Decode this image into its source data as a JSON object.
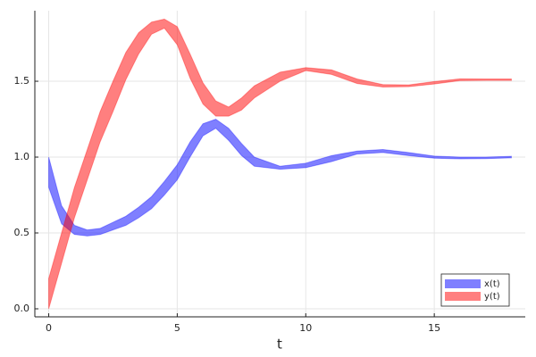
{
  "chart_data": {
    "type": "ribbon",
    "xlabel": "t",
    "x": [
      0,
      0.5,
      1,
      1.5,
      2,
      2.5,
      3,
      3.5,
      4,
      4.5,
      5,
      5.5,
      6,
      6.5,
      7,
      7.5,
      8,
      9,
      10,
      11,
      12,
      13,
      14,
      15,
      16,
      17,
      18
    ],
    "series": [
      {
        "name": "x(t)",
        "color": "#0000ff",
        "lower": [
          0.8,
          0.56,
          0.49,
          0.48,
          0.49,
          0.52,
          0.55,
          0.6,
          0.66,
          0.75,
          0.85,
          1.0,
          1.14,
          1.19,
          1.11,
          1.01,
          0.94,
          0.92,
          0.93,
          0.97,
          1.02,
          1.03,
          1.01,
          0.993,
          0.988,
          0.99,
          0.995
        ],
        "upper": [
          1.0,
          0.68,
          0.55,
          0.52,
          0.53,
          0.57,
          0.61,
          0.67,
          0.74,
          0.84,
          0.95,
          1.1,
          1.22,
          1.25,
          1.19,
          1.09,
          1.0,
          0.94,
          0.96,
          1.01,
          1.04,
          1.05,
          1.03,
          1.007,
          1.0,
          1.0,
          1.005
        ]
      },
      {
        "name": "y(t)",
        "color": "#ff0000",
        "lower": [
          0,
          0.3,
          0.6,
          0.85,
          1.1,
          1.3,
          1.51,
          1.68,
          1.81,
          1.85,
          1.74,
          1.52,
          1.35,
          1.27,
          1.27,
          1.31,
          1.39,
          1.5,
          1.57,
          1.545,
          1.485,
          1.462,
          1.464,
          1.482,
          1.504,
          1.505,
          1.505
        ],
        "upper": [
          0.2,
          0.5,
          0.8,
          1.05,
          1.3,
          1.5,
          1.69,
          1.82,
          1.89,
          1.91,
          1.86,
          1.68,
          1.49,
          1.37,
          1.33,
          1.39,
          1.47,
          1.56,
          1.59,
          1.575,
          1.515,
          1.478,
          1.476,
          1.498,
          1.516,
          1.515,
          1.515
        ]
      }
    ],
    "fill_opacity": 0.5,
    "xlim": [
      -0.54,
      18.54
    ],
    "xticks": [
      0,
      5,
      10,
      15
    ],
    "ylim": [
      -0.053,
      1.965
    ],
    "yticks": [
      {
        "value": 0,
        "label": "0.0"
      },
      0.5,
      {
        "value": 1,
        "label": "1.0"
      },
      1.5
    ],
    "grid": true,
    "legend": "bottom-right"
  }
}
